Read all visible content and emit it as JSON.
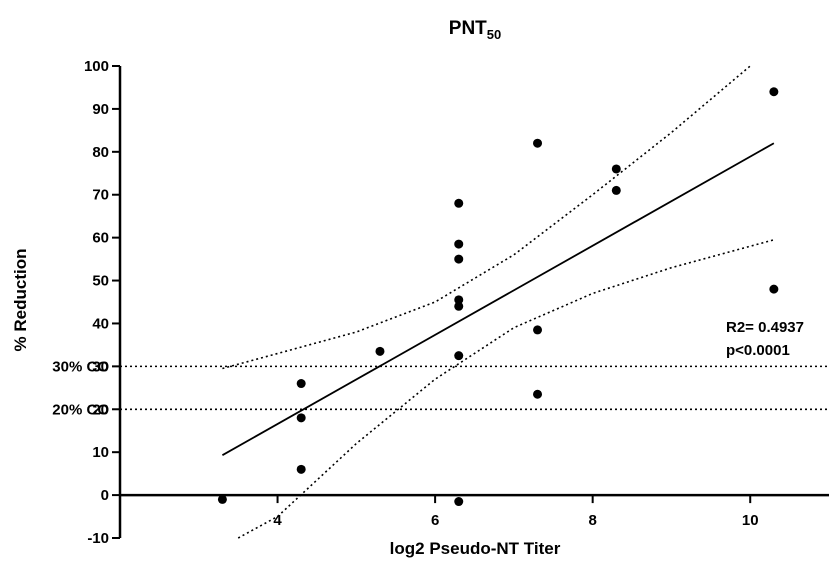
{
  "chart_data": {
    "type": "scatter",
    "title_main": "PNT",
    "title_sub": "50",
    "xlabel": "log2 Pseudo-NT Titer",
    "ylabel": "% Reduction",
    "xlim": [
      2,
      11
    ],
    "ylim": [
      -10,
      100
    ],
    "xticks": [
      4,
      6,
      8,
      10
    ],
    "yticks": [
      -10,
      0,
      10,
      20,
      30,
      40,
      50,
      60,
      70,
      80,
      90,
      100
    ],
    "points": [
      {
        "x": 3.3,
        "y": -1
      },
      {
        "x": 4.3,
        "y": 26
      },
      {
        "x": 4.3,
        "y": 18
      },
      {
        "x": 4.3,
        "y": 6
      },
      {
        "x": 5.3,
        "y": 33.5
      },
      {
        "x": 6.3,
        "y": 68
      },
      {
        "x": 6.3,
        "y": 58.5
      },
      {
        "x": 6.3,
        "y": 55
      },
      {
        "x": 6.3,
        "y": 45.5
      },
      {
        "x": 6.3,
        "y": 44
      },
      {
        "x": 6.3,
        "y": 32.5
      },
      {
        "x": 6.3,
        "y": -1.5
      },
      {
        "x": 7.3,
        "y": 82
      },
      {
        "x": 7.3,
        "y": 38.5
      },
      {
        "x": 7.3,
        "y": 23.5
      },
      {
        "x": 8.3,
        "y": 76
      },
      {
        "x": 8.3,
        "y": 71
      },
      {
        "x": 10.3,
        "y": 94
      },
      {
        "x": 10.3,
        "y": 48
      }
    ],
    "fit_line": [
      {
        "x": 3.3,
        "y": 9.3
      },
      {
        "x": 10.3,
        "y": 82
      }
    ],
    "ci_upper": [
      {
        "x": 3.3,
        "y": 29.5
      },
      {
        "x": 4.0,
        "y": 33
      },
      {
        "x": 5.0,
        "y": 38
      },
      {
        "x": 6.0,
        "y": 45
      },
      {
        "x": 7.0,
        "y": 56
      },
      {
        "x": 8.0,
        "y": 70
      },
      {
        "x": 9.0,
        "y": 84.5
      },
      {
        "x": 10.0,
        "y": 100
      }
    ],
    "ci_lower": [
      {
        "x": 3.5,
        "y": -10
      },
      {
        "x": 4.0,
        "y": -5
      },
      {
        "x": 5.0,
        "y": 12
      },
      {
        "x": 6.0,
        "y": 27
      },
      {
        "x": 7.0,
        "y": 39
      },
      {
        "x": 8.0,
        "y": 47
      },
      {
        "x": 9.0,
        "y": 53
      },
      {
        "x": 10.3,
        "y": 59.5
      }
    ],
    "cutoffs": [
      {
        "label": "30% CO",
        "y": 30
      },
      {
        "label": "20% CO",
        "y": 20
      }
    ],
    "annotation": {
      "r2": "R2= 0.4937",
      "p": "p<0.0001"
    }
  }
}
